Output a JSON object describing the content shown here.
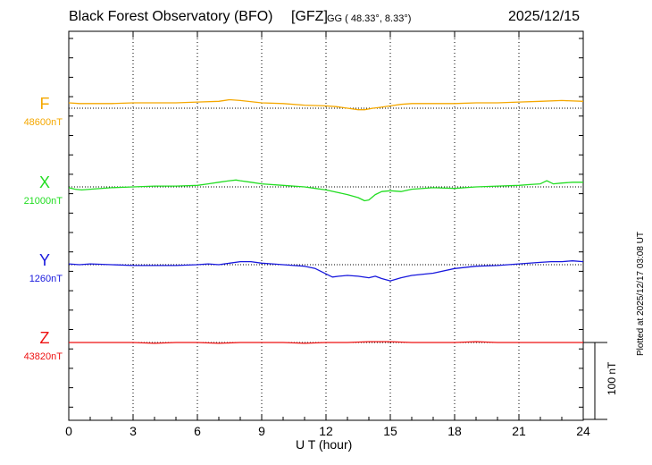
{
  "header": {
    "title": "Black Forest Observatory (BFO)",
    "agency": "[GFZ]",
    "coords": "GG ( 48.33°,   8.33°)",
    "date": "2025/12/15"
  },
  "side_note": "Plotted at 2025/12/17 03:08 UT",
  "scale_bar_label": "100 nT",
  "chart_data": {
    "type": "line",
    "title": "Black Forest Observatory (BFO)",
    "xlabel": "U T (hour)",
    "ylabel": "",
    "xlim": [
      0,
      24
    ],
    "xticks": [
      0,
      3,
      6,
      9,
      12,
      15,
      18,
      21,
      24
    ],
    "grid": true,
    "scale_bar_nT": 100,
    "series": [
      {
        "name": "F",
        "baseline_label": "48600nT",
        "baseline_nT": 48600,
        "color": "#F5A800",
        "x": [
          0,
          0.5,
          1,
          2,
          3,
          4,
          5,
          6,
          7,
          7.5,
          8,
          9,
          10,
          11,
          12,
          12.5,
          13,
          13.5,
          13.8,
          14.2,
          14.5,
          15,
          15.5,
          16,
          17,
          18,
          19,
          20,
          21,
          22,
          23,
          24
        ],
        "y": [
          48607,
          48606,
          48606,
          48606,
          48607,
          48607,
          48607,
          48608,
          48609,
          48611,
          48610,
          48607,
          48606,
          48604,
          48603,
          48602,
          48600,
          48598,
          48598,
          48600,
          48601,
          48603,
          48605,
          48606,
          48606,
          48606,
          48607,
          48607,
          48608,
          48609,
          48610,
          48609
        ]
      },
      {
        "name": "X",
        "baseline_label": "21000nT",
        "baseline_nT": 21000,
        "color": "#22DD22",
        "x": [
          0,
          0.3,
          0.6,
          1,
          2,
          3,
          4,
          5,
          6,
          6.5,
          7,
          7.5,
          7.8,
          8,
          8.5,
          9,
          10,
          11,
          11.5,
          12,
          12.5,
          13,
          13.5,
          13.8,
          14,
          14.3,
          14.6,
          15,
          15.5,
          16,
          17,
          18,
          19,
          20,
          21,
          21.5,
          22,
          22.3,
          22.6,
          23,
          23.5,
          24
        ],
        "y": [
          20999,
          20997,
          20996,
          20997,
          20999,
          21000,
          21001,
          21001,
          21002,
          21004,
          21006,
          21008,
          21009,
          21008,
          21006,
          21004,
          21002,
          21000,
          20998,
          20996,
          20993,
          20990,
          20986,
          20982,
          20983,
          20990,
          20994,
          20995,
          20994,
          20997,
          20999,
          20998,
          21000,
          21001,
          21002,
          21003,
          21004,
          21008,
          21004,
          21005,
          21006,
          21006
        ]
      },
      {
        "name": "Y",
        "baseline_label": "1260nT",
        "baseline_nT": 1260,
        "color": "#1818DD",
        "x": [
          0,
          0.5,
          1,
          2,
          3,
          4,
          5,
          6,
          6.5,
          7,
          7.5,
          8,
          8.5,
          9,
          9.5,
          10,
          10.5,
          11,
          11.5,
          12,
          12.3,
          12.6,
          13,
          13.5,
          14,
          14.3,
          14.6,
          15,
          15.5,
          16,
          17,
          18,
          19,
          20,
          21,
          22,
          22.5,
          23,
          23.5,
          24
        ],
        "y": [
          1261,
          1260,
          1261,
          1260,
          1259,
          1259,
          1259,
          1260,
          1261,
          1260,
          1262,
          1264,
          1264,
          1262,
          1261,
          1260,
          1259,
          1258,
          1255,
          1248,
          1244,
          1245,
          1246,
          1245,
          1243,
          1245,
          1242,
          1239,
          1243,
          1246,
          1249,
          1255,
          1258,
          1259,
          1261,
          1263,
          1264,
          1264,
          1265,
          1264
        ]
      },
      {
        "name": "Z",
        "baseline_label": "43820nT",
        "baseline_nT": 43820,
        "color": "#EE1111",
        "x": [
          0,
          1,
          2,
          3,
          4,
          5,
          6,
          7,
          8,
          9,
          10,
          11,
          12,
          13,
          14,
          15,
          16,
          17,
          18,
          19,
          20,
          21,
          22,
          23,
          24
        ],
        "y": [
          43820,
          43820,
          43820,
          43820,
          43819,
          43820,
          43820,
          43819,
          43820,
          43820,
          43820,
          43819,
          43820,
          43820,
          43821,
          43821,
          43820,
          43820,
          43820,
          43821,
          43820,
          43820,
          43820,
          43820,
          43820
        ]
      }
    ]
  }
}
